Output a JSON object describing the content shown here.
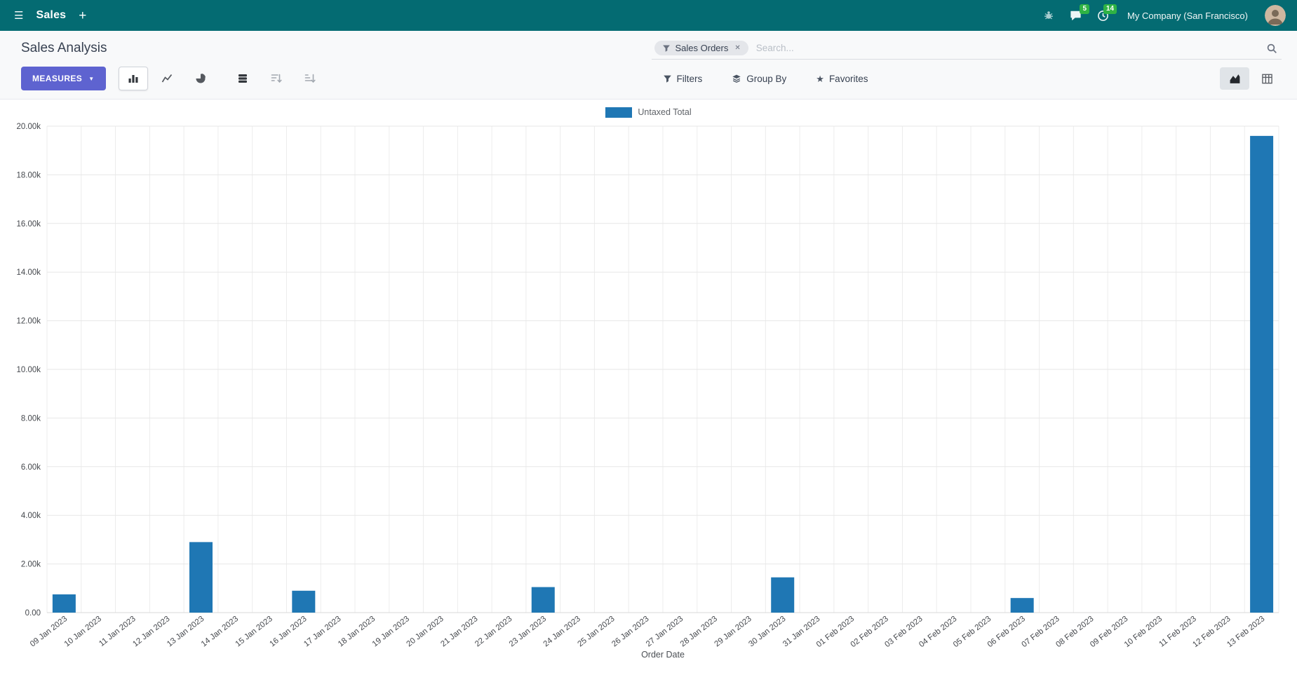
{
  "navbar": {
    "app_name": "Sales",
    "company_name": "My Company (San Francisco)",
    "message_count": "5",
    "activity_count": "14"
  },
  "icons": {
    "menu": "☰",
    "plus": "+",
    "caret_down": "▼",
    "close": "✕",
    "star": "★"
  },
  "control_panel": {
    "title": "Sales Analysis",
    "measures_label": "MEASURES",
    "search": {
      "facet_label": "Sales Orders",
      "placeholder": "Search..."
    },
    "filters_label": "Filters",
    "group_by_label": "Group By",
    "favorites_label": "Favorites"
  },
  "chart_data": {
    "type": "bar",
    "title": "",
    "series_name": "Untaxed Total",
    "xlabel": "Order Date",
    "ylabel": "",
    "ylim": [
      0,
      20000
    ],
    "y_tick_step": 2000,
    "y_tick_labels": [
      "0.00",
      "2.00k",
      "4.00k",
      "6.00k",
      "8.00k",
      "10.00k",
      "12.00k",
      "14.00k",
      "16.00k",
      "18.00k",
      "20.00k"
    ],
    "grid": true,
    "legend_position": "top-center",
    "bar_color": "#1f77b4",
    "categories": [
      "09 Jan 2023",
      "10 Jan 2023",
      "11 Jan 2023",
      "12 Jan 2023",
      "13 Jan 2023",
      "14 Jan 2023",
      "15 Jan 2023",
      "16 Jan 2023",
      "17 Jan 2023",
      "18 Jan 2023",
      "19 Jan 2023",
      "20 Jan 2023",
      "21 Jan 2023",
      "22 Jan 2023",
      "23 Jan 2023",
      "24 Jan 2023",
      "25 Jan 2023",
      "26 Jan 2023",
      "27 Jan 2023",
      "28 Jan 2023",
      "29 Jan 2023",
      "30 Jan 2023",
      "31 Jan 2023",
      "01 Feb 2023",
      "02 Feb 2023",
      "03 Feb 2023",
      "04 Feb 2023",
      "05 Feb 2023",
      "06 Feb 2023",
      "07 Feb 2023",
      "08 Feb 2023",
      "09 Feb 2023",
      "10 Feb 2023",
      "11 Feb 2023",
      "12 Feb 2023",
      "13 Feb 2023"
    ],
    "values": [
      750,
      0,
      0,
      0,
      2900,
      0,
      0,
      900,
      0,
      0,
      0,
      0,
      0,
      0,
      1050,
      0,
      0,
      0,
      0,
      0,
      0,
      1450,
      0,
      0,
      0,
      0,
      0,
      0,
      600,
      0,
      0,
      0,
      0,
      0,
      0,
      19600
    ]
  },
  "colors": {
    "navbar_bg": "#046b72",
    "accent": "#5e63d0",
    "panel_bg": "#f8f9fa",
    "badge_green": "#2fb344",
    "bar": "#1f77b4"
  }
}
